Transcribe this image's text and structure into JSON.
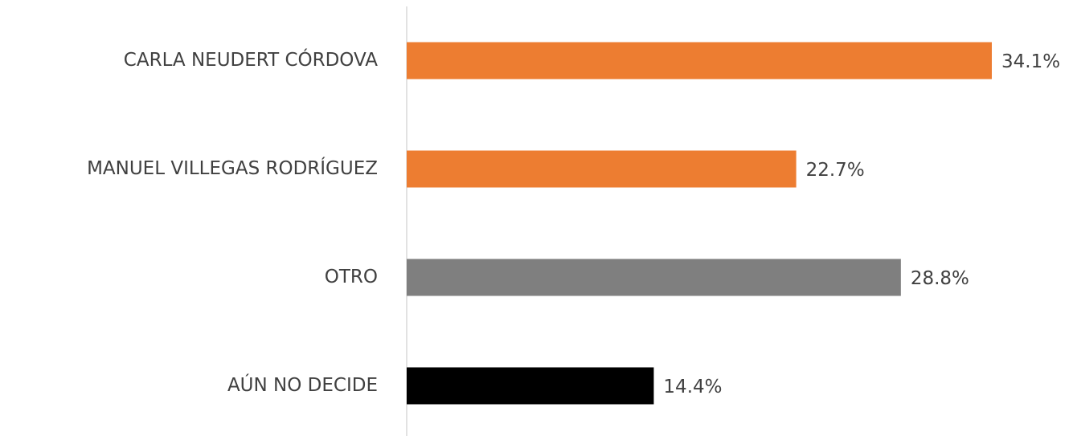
{
  "chart_data": {
    "type": "bar",
    "orientation": "horizontal",
    "categories": [
      "CARLA NEUDERT CÓRDOVA",
      "MANUEL VILLEGAS RODRÍGUEZ",
      "OTRO",
      "AÚN NO DECIDE"
    ],
    "values": [
      34.1,
      22.7,
      28.8,
      14.4
    ],
    "value_labels": [
      "34.1%",
      "22.7%",
      "28.8%",
      "14.4%"
    ],
    "colors": [
      "#ED7D31",
      "#ED7D31",
      "#7F7F7F",
      "#000000"
    ]
  }
}
